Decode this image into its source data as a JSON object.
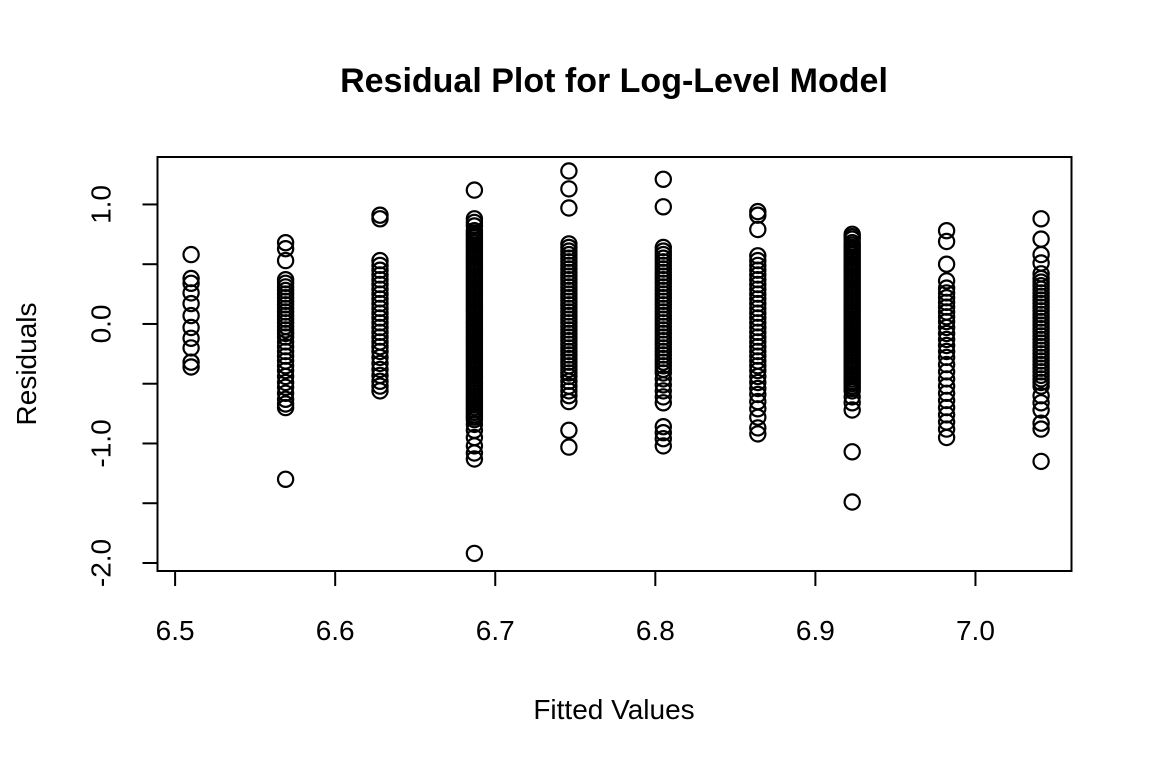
{
  "chart_data": {
    "type": "scatter",
    "title": "Residual Plot for Log-Level Model",
    "xlabel": "Fitted Values",
    "ylabel": "Residuals",
    "xlim": [
      6.489,
      7.06
    ],
    "ylim": [
      -2.067,
      1.397
    ],
    "grid": false,
    "legend": null,
    "marker": {
      "shape": "open-circle",
      "radius": 7.6,
      "stroke": "#000000",
      "stroke_width": 2.2,
      "fill": "none"
    },
    "axis_color": "#000000",
    "background": "#ffffff",
    "x_ticks": {
      "values": [
        6.5,
        6.6,
        6.7,
        6.8,
        6.9,
        7.0
      ],
      "labels": [
        "6.5",
        "6.6",
        "6.7",
        "6.8",
        "6.9",
        "7.0"
      ]
    },
    "y_ticks": {
      "values": [
        1.0,
        0.5,
        0.0,
        -0.5,
        -1.0,
        -1.5,
        -2.0
      ],
      "labels": [
        "1.0",
        "",
        "0.0",
        "",
        "-1.0",
        "",
        "-2.0"
      ]
    },
    "columns": [
      {
        "x": 6.51,
        "residuals": [
          0.58,
          0.38,
          0.34,
          0.26,
          0.17,
          0.07,
          -0.03,
          -0.12,
          -0.2,
          -0.32,
          -0.36
        ]
      },
      {
        "x": 6.569,
        "residuals": [
          0.68,
          0.63,
          0.53,
          0.37,
          0.34,
          0.31,
          0.28,
          0.25,
          0.22,
          0.19,
          0.16,
          0.13,
          0.1,
          0.07,
          0.04,
          0.01,
          -0.02,
          -0.05,
          -0.08,
          -0.11,
          -0.15,
          -0.19,
          -0.23,
          -0.27,
          -0.31,
          -0.35,
          -0.39,
          -0.44,
          -0.49,
          -0.53,
          -0.58,
          -0.63,
          -0.67,
          -0.7,
          -1.3
        ]
      },
      {
        "x": 6.628,
        "residuals": [
          0.91,
          0.88,
          0.53,
          0.49,
          0.45,
          0.41,
          0.37,
          0.33,
          0.29,
          0.25,
          0.21,
          0.17,
          0.13,
          0.09,
          0.05,
          0.01,
          -0.03,
          -0.07,
          -0.11,
          -0.15,
          -0.19,
          -0.23,
          -0.28,
          -0.33,
          -0.38,
          -0.43,
          -0.48,
          -0.52,
          -0.56
        ]
      },
      {
        "x": 6.687,
        "residuals": [
          1.12,
          0.88,
          0.85,
          0.82,
          0.78,
          0.76,
          0.74,
          0.72,
          0.7,
          0.68,
          0.66,
          0.64,
          0.62,
          0.6,
          0.58,
          0.56,
          0.54,
          0.52,
          0.5,
          0.48,
          0.46,
          0.44,
          0.42,
          0.4,
          0.38,
          0.36,
          0.34,
          0.32,
          0.3,
          0.28,
          0.26,
          0.24,
          0.22,
          0.2,
          0.18,
          0.16,
          0.14,
          0.12,
          0.1,
          0.08,
          0.06,
          0.04,
          0.02,
          0.0,
          -0.02,
          -0.04,
          -0.06,
          -0.08,
          -0.1,
          -0.12,
          -0.14,
          -0.16,
          -0.18,
          -0.2,
          -0.22,
          -0.24,
          -0.26,
          -0.28,
          -0.3,
          -0.32,
          -0.34,
          -0.36,
          -0.38,
          -0.4,
          -0.42,
          -0.44,
          -0.46,
          -0.48,
          -0.5,
          -0.52,
          -0.54,
          -0.56,
          -0.58,
          -0.6,
          -0.62,
          -0.64,
          -0.66,
          -0.68,
          -0.7,
          -0.72,
          -0.74,
          -0.76,
          -0.78,
          -0.8,
          -0.84,
          -0.89,
          -0.95,
          -1.02,
          -1.08,
          -1.13,
          -1.92
        ]
      },
      {
        "x": 6.746,
        "residuals": [
          1.28,
          1.13,
          0.97,
          0.67,
          0.64,
          0.61,
          0.58,
          0.55,
          0.52,
          0.49,
          0.46,
          0.43,
          0.4,
          0.37,
          0.34,
          0.31,
          0.28,
          0.25,
          0.22,
          0.19,
          0.16,
          0.13,
          0.1,
          0.07,
          0.04,
          0.01,
          -0.02,
          -0.05,
          -0.08,
          -0.11,
          -0.14,
          -0.17,
          -0.2,
          -0.23,
          -0.26,
          -0.29,
          -0.32,
          -0.35,
          -0.38,
          -0.41,
          -0.44,
          -0.48,
          -0.52,
          -0.56,
          -0.6,
          -0.65,
          -0.89,
          -1.03
        ]
      },
      {
        "x": 6.805,
        "residuals": [
          1.21,
          0.98,
          0.64,
          0.61,
          0.58,
          0.55,
          0.52,
          0.49,
          0.46,
          0.43,
          0.4,
          0.37,
          0.34,
          0.31,
          0.28,
          0.25,
          0.22,
          0.19,
          0.16,
          0.13,
          0.1,
          0.07,
          0.04,
          0.01,
          -0.02,
          -0.05,
          -0.08,
          -0.11,
          -0.14,
          -0.17,
          -0.2,
          -0.23,
          -0.26,
          -0.29,
          -0.32,
          -0.35,
          -0.38,
          -0.41,
          -0.46,
          -0.51,
          -0.56,
          -0.61,
          -0.66,
          -0.86,
          -0.91,
          -0.96,
          -1.02
        ]
      },
      {
        "x": 6.864,
        "residuals": [
          0.94,
          0.91,
          0.79,
          0.57,
          0.53,
          0.49,
          0.45,
          0.41,
          0.37,
          0.33,
          0.29,
          0.25,
          0.21,
          0.17,
          0.13,
          0.09,
          0.05,
          0.01,
          -0.03,
          -0.07,
          -0.11,
          -0.15,
          -0.19,
          -0.23,
          -0.27,
          -0.31,
          -0.35,
          -0.39,
          -0.44,
          -0.49,
          -0.54,
          -0.59,
          -0.65,
          -0.71,
          -0.78,
          -0.87,
          -0.92
        ]
      },
      {
        "x": 6.923,
        "residuals": [
          0.75,
          0.73,
          0.71,
          0.68,
          0.66,
          0.64,
          0.62,
          0.6,
          0.58,
          0.56,
          0.54,
          0.52,
          0.5,
          0.48,
          0.46,
          0.44,
          0.42,
          0.4,
          0.38,
          0.36,
          0.34,
          0.32,
          0.3,
          0.28,
          0.26,
          0.24,
          0.22,
          0.2,
          0.18,
          0.16,
          0.14,
          0.12,
          0.1,
          0.08,
          0.06,
          0.04,
          0.02,
          0.0,
          -0.02,
          -0.04,
          -0.06,
          -0.08,
          -0.1,
          -0.12,
          -0.14,
          -0.16,
          -0.18,
          -0.2,
          -0.22,
          -0.24,
          -0.26,
          -0.28,
          -0.3,
          -0.32,
          -0.34,
          -0.36,
          -0.38,
          -0.4,
          -0.42,
          -0.44,
          -0.46,
          -0.48,
          -0.5,
          -0.52,
          -0.54,
          -0.56,
          -0.61,
          -0.66,
          -0.72,
          -1.07,
          -1.49
        ]
      },
      {
        "x": 6.982,
        "residuals": [
          0.78,
          0.69,
          0.5,
          0.36,
          0.3,
          0.26,
          0.22,
          0.18,
          0.14,
          0.1,
          0.06,
          0.02,
          -0.03,
          -0.08,
          -0.13,
          -0.18,
          -0.23,
          -0.28,
          -0.34,
          -0.4,
          -0.46,
          -0.52,
          -0.58,
          -0.64,
          -0.7,
          -0.76,
          -0.82,
          -0.88,
          -0.95
        ]
      },
      {
        "x": 7.041,
        "residuals": [
          0.88,
          0.71,
          0.58,
          0.51,
          0.42,
          0.38,
          0.35,
          0.32,
          0.29,
          0.26,
          0.23,
          0.2,
          0.17,
          0.14,
          0.11,
          0.08,
          0.05,
          0.02,
          -0.01,
          -0.04,
          -0.07,
          -0.1,
          -0.13,
          -0.16,
          -0.19,
          -0.22,
          -0.25,
          -0.28,
          -0.31,
          -0.34,
          -0.37,
          -0.4,
          -0.43,
          -0.46,
          -0.49,
          -0.52,
          -0.6,
          -0.66,
          -0.72,
          -0.83,
          -0.88,
          -1.15
        ]
      }
    ]
  }
}
